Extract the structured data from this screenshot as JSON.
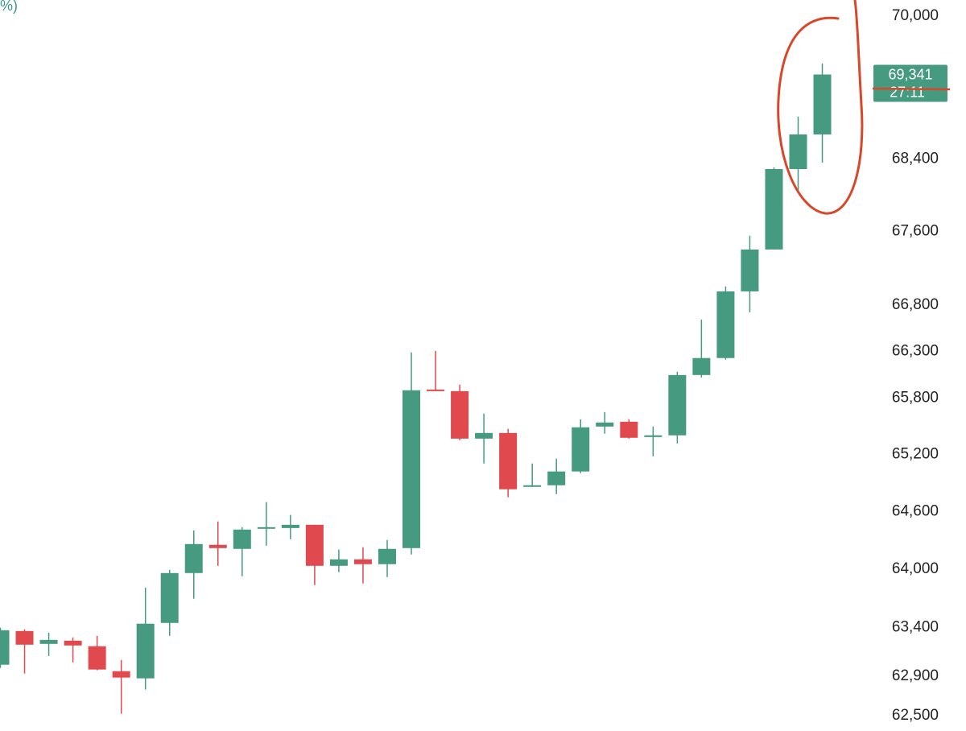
{
  "chart_data": {
    "type": "candlestick",
    "subtitle": "%)",
    "log_scale": true,
    "up_color": "#459a80",
    "down_color": "#e0494e",
    "open": [
      63018,
      63363,
      63231,
      63264,
      63207,
      62952,
      62879,
      63446,
      63961,
      64254,
      64212,
      64429,
      64429,
      64463,
      64036,
      64103,
      64053,
      64220,
      65891,
      65874,
      65369,
      65429,
      64869,
      64877,
      65022,
      65497,
      65548,
      65386,
      65404,
      66046,
      66228,
      66947,
      67403,
      68287,
      68671
    ],
    "high": [
      63397,
      63380,
      63346,
      63297,
      63313,
      63067,
      63810,
      63994,
      64404,
      64497,
      64438,
      64700,
      64566,
      64463,
      64204,
      64228,
      64304,
      66288,
      66305,
      65943,
      65634,
      65472,
      65106,
      65157,
      65574,
      65651,
      65574,
      65497,
      66081,
      66642,
      67000,
      67553,
      68305,
      68869,
      69464
    ],
    "low": [
      62985,
      62928,
      63107,
      63042,
      62961,
      62519,
      62765,
      63313,
      63695,
      64036,
      63928,
      64245,
      64312,
      63836,
      63970,
      63853,
      63919,
      64154,
      65874,
      65352,
      65106,
      64751,
      64860,
      64784,
      65004,
      65421,
      65369,
      65182,
      65318,
      66020,
      66210,
      66721,
      67403,
      68021,
      68358
    ],
    "close": [
      63371,
      63223,
      63272,
      63215,
      62969,
      62887,
      63438,
      63961,
      64262,
      64220,
      64413,
      64438,
      64463,
      64036,
      64103,
      64053,
      64212,
      65883,
      65874,
      65369,
      65429,
      64835,
      64877,
      65022,
      65489,
      65540,
      65378,
      65404,
      66046,
      66228,
      66947,
      67403,
      68287,
      68671,
      69341
    ],
    "ylim": [
      62345,
      70183
    ],
    "yticks": [
      {
        "value": 70000,
        "label": "70,000"
      },
      {
        "value": 68400,
        "label": "68,400"
      },
      {
        "value": 67600,
        "label": "67,600"
      },
      {
        "value": 66800,
        "label": "66,800"
      },
      {
        "value": 66300,
        "label": "66,300"
      },
      {
        "value": 65800,
        "label": "65,800"
      },
      {
        "value": 65200,
        "label": "65,200"
      },
      {
        "value": 64600,
        "label": "64,600"
      },
      {
        "value": 64000,
        "label": "64,000"
      },
      {
        "value": 63400,
        "label": "63,400"
      },
      {
        "value": 62900,
        "label": "62,900"
      },
      {
        "value": 62500,
        "label": "62,500"
      }
    ],
    "last_price": {
      "value": 69341,
      "label": "69,341"
    },
    "countdown": "27:11",
    "annotation_color": "#d9472b"
  }
}
